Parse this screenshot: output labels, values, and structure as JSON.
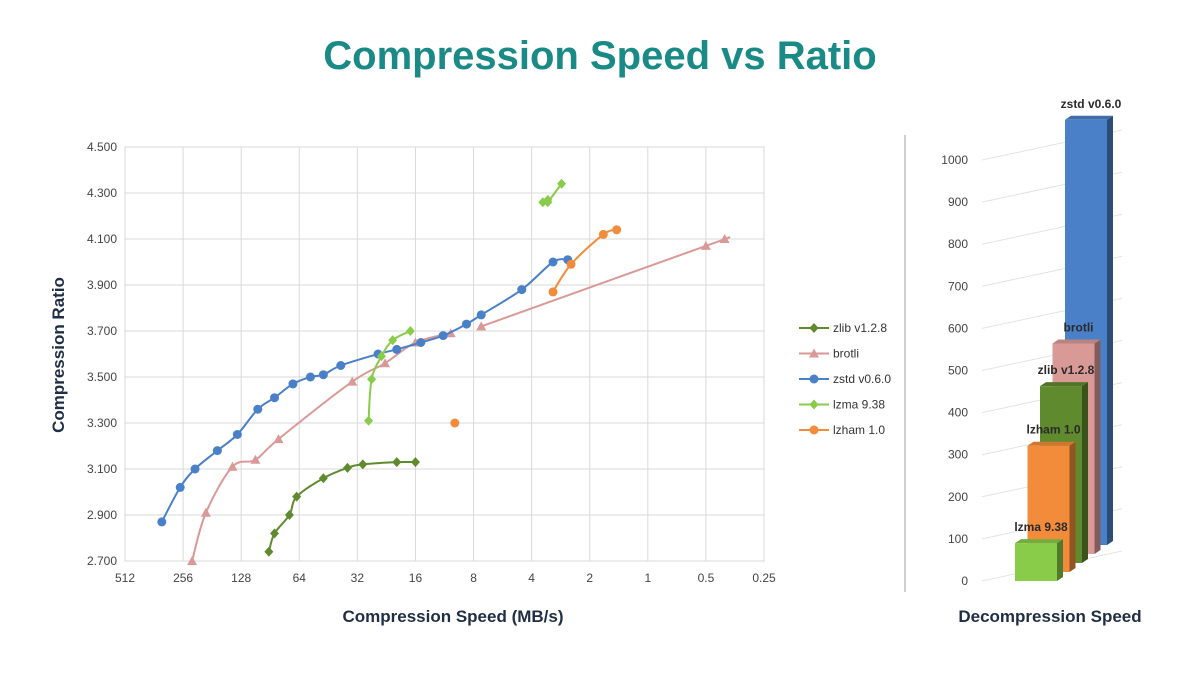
{
  "title": "Compression Speed vs Ratio",
  "chart_data": [
    {
      "type": "line",
      "xscale": "log2-reversed",
      "xlabel": "Compression Speed (MB/s)",
      "ylabel": "Compression Ratio",
      "xlim": [
        512,
        0.25
      ],
      "ylim": [
        2.7,
        4.5
      ],
      "grid": true,
      "legend_position": "right",
      "x_ticks": [
        512,
        256,
        128,
        64,
        32,
        16,
        8,
        4,
        2,
        1,
        0.5,
        0.25
      ],
      "x_tick_labels": [
        "512",
        "256",
        "128",
        "64",
        "32",
        "16",
        "8",
        "4",
        "2",
        "1",
        "0.5",
        "0.25"
      ],
      "y_ticks": [
        2.7,
        2.9,
        3.1,
        3.3,
        3.5,
        3.7,
        3.9,
        4.1,
        4.3,
        4.5
      ],
      "y_tick_labels": [
        "2.700",
        "2.900",
        "3.100",
        "3.300",
        "3.500",
        "3.700",
        "3.900",
        "4.100",
        "4.300",
        "4.500"
      ],
      "series": [
        {
          "name": "zlib v1.2.8",
          "color": "#5f8a2e",
          "marker": "diamond",
          "points": [
            [
              92,
              2.74
            ],
            [
              86,
              2.82
            ],
            [
              72,
              2.9
            ],
            [
              66,
              2.98
            ],
            [
              48,
              3.06
            ],
            [
              36,
              3.105
            ],
            [
              30,
              3.12
            ],
            [
              20,
              3.13
            ],
            [
              16,
              3.13
            ]
          ]
        },
        {
          "name": "brotli",
          "color": "#d99a97",
          "marker": "triangle",
          "points": [
            [
              230,
              2.7
            ],
            [
              195,
              2.91
            ],
            [
              142,
              3.11
            ],
            [
              108,
              3.14
            ],
            [
              82,
              3.23
            ],
            [
              34,
              3.48
            ],
            [
              23,
              3.56
            ],
            [
              16,
              3.65
            ],
            [
              10.5,
              3.69
            ],
            [
              7.3,
              3.72
            ],
            [
              0.5,
              4.07
            ],
            [
              0.4,
              4.1
            ]
          ],
          "breaks": [
            9
          ]
        },
        {
          "name": "zstd v0.6.0",
          "color": "#4a80c8",
          "marker": "circle",
          "points": [
            [
              330,
              2.87
            ],
            [
              265,
              3.02
            ],
            [
              222,
              3.1
            ],
            [
              170,
              3.18
            ],
            [
              134,
              3.25
            ],
            [
              105,
              3.36
            ],
            [
              86,
              3.41
            ],
            [
              69,
              3.47
            ],
            [
              56,
              3.5
            ],
            [
              48,
              3.51
            ],
            [
              39,
              3.55
            ],
            [
              25,
              3.6
            ],
            [
              20,
              3.62
            ],
            [
              15,
              3.65
            ],
            [
              11.5,
              3.68
            ],
            [
              8.7,
              3.73
            ],
            [
              7.3,
              3.77
            ],
            [
              4.5,
              3.88
            ],
            [
              3.1,
              4.0
            ],
            [
              2.6,
              4.01
            ]
          ]
        },
        {
          "name": "lzma 9.38",
          "color": "#88cc4a",
          "marker": "diamond",
          "points": [
            [
              3.5,
              4.26
            ],
            [
              3.3,
              4.27
            ],
            [
              3.3,
              4.26
            ],
            [
              2.8,
              4.34
            ],
            [
              28,
              3.31
            ],
            [
              27,
              3.49
            ],
            [
              24,
              3.59
            ],
            [
              21,
              3.66
            ],
            [
              17,
              3.7
            ]
          ],
          "breaks": [
            4
          ]
        },
        {
          "name": "lzham 1.0",
          "color": "#f28c3a",
          "marker": "circle",
          "points": [
            [
              10,
              3.3
            ],
            [
              3.1,
              3.87
            ],
            [
              2.5,
              3.99
            ],
            [
              1.7,
              4.12
            ],
            [
              1.45,
              4.14
            ]
          ],
          "breaks": [
            1
          ]
        }
      ]
    },
    {
      "type": "bar",
      "style": "3d",
      "xlabel": "Decompression Speed",
      "ylim": [
        0,
        1000
      ],
      "y_tick_labels": [
        "0",
        "100",
        "200",
        "300",
        "400",
        "500",
        "600",
        "700",
        "800",
        "900",
        "1000"
      ],
      "bars": [
        {
          "name": "lzma 9.38",
          "value": 90,
          "color": "#88cc4a"
        },
        {
          "name": "lzham 1.0",
          "value": 300,
          "color": "#f28c3a"
        },
        {
          "name": "zlib v1.2.8",
          "value": 420,
          "color": "#5f8a2e"
        },
        {
          "name": "brotli",
          "value": 500,
          "color": "#d99a97"
        },
        {
          "name": "zstd v0.6.0",
          "value": 1010,
          "color": "#4a80c8"
        }
      ]
    }
  ]
}
